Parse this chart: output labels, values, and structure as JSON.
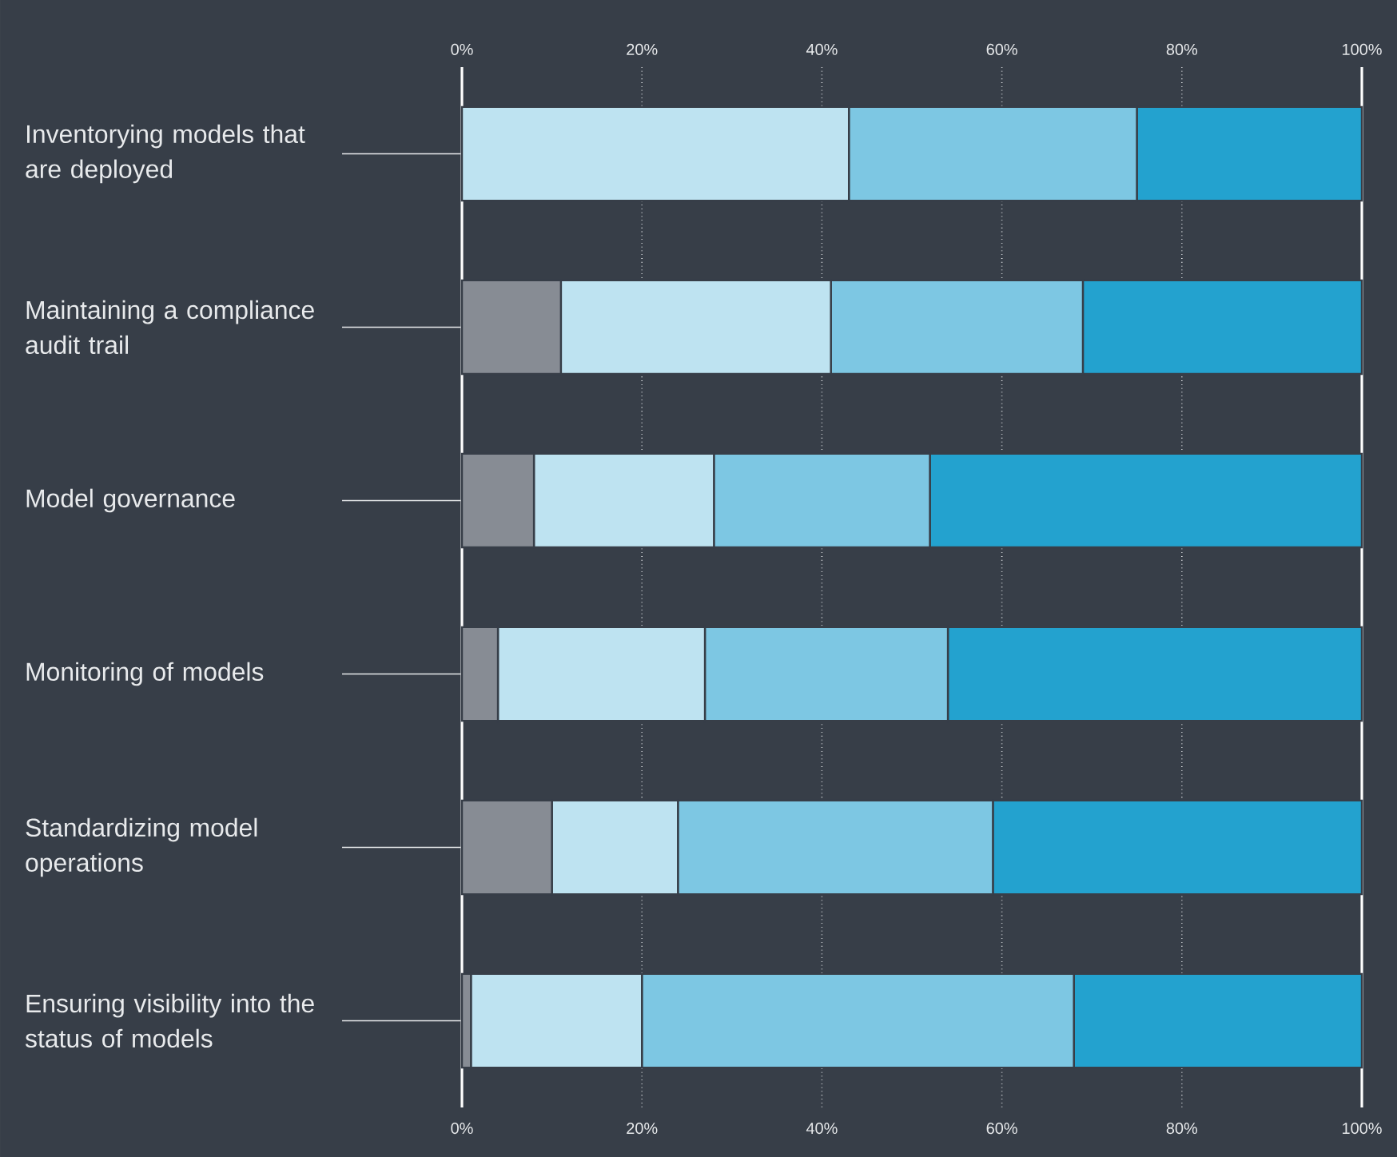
{
  "chart_data": {
    "type": "bar",
    "orientation": "horizontal",
    "stacked": true,
    "categories": [
      "Inventorying models that are deployed",
      "Maintaining a compliance audit trail",
      "Model governance",
      "Monitoring of models",
      "Standardizing model operations",
      "Ensuring visibility into the status of models"
    ],
    "series": [
      {
        "color": "#878c94",
        "values": [
          0,
          11,
          8,
          4,
          10,
          1
        ]
      },
      {
        "color": "#bee3f1",
        "values": [
          43,
          30,
          20,
          23,
          14,
          19
        ]
      },
      {
        "color": "#7dc7e3",
        "values": [
          32,
          28,
          24,
          27,
          35,
          48
        ]
      },
      {
        "color": "#23a2cf",
        "values": [
          25,
          31,
          48,
          46,
          41,
          32
        ]
      }
    ],
    "xlim": [
      0,
      100
    ],
    "xticks": [
      {
        "value": 0,
        "label": "0%"
      },
      {
        "value": 20,
        "label": "20%"
      },
      {
        "value": 40,
        "label": "40%"
      },
      {
        "value": 60,
        "label": "60%"
      },
      {
        "value": 80,
        "label": "80%"
      },
      {
        "value": 100,
        "label": "100%"
      }
    ],
    "x2lim": [
      0,
      100
    ],
    "x2ticks": [
      {
        "value": 0,
        "label": "0%"
      },
      {
        "value": 20,
        "label": "20%"
      },
      {
        "value": 40,
        "label": "40%"
      },
      {
        "value": 60,
        "label": "60%"
      },
      {
        "value": 80,
        "label": "80%"
      },
      {
        "value": 100,
        "label": "100%"
      }
    ],
    "grid": "x"
  }
}
